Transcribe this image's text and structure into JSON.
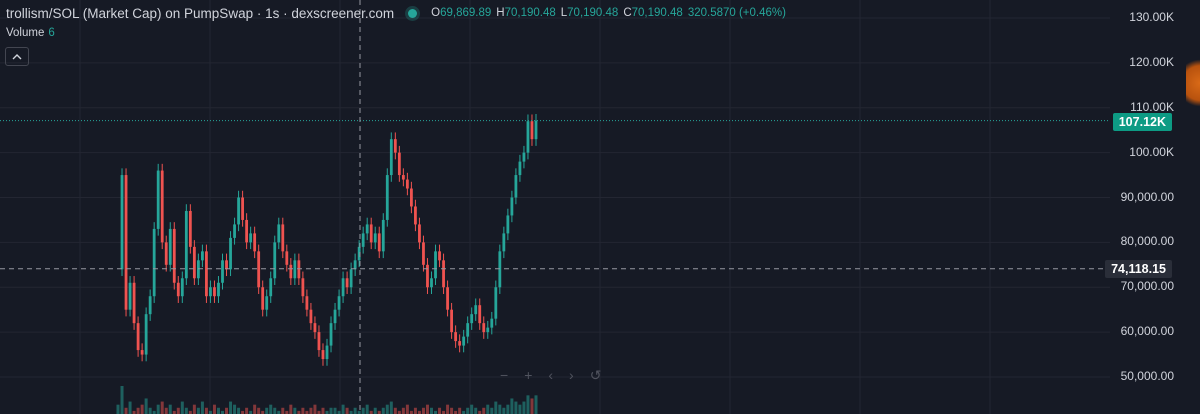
{
  "header": {
    "title": "trollism/SOL (Market Cap) on PumpSwap · 1s · dexscreener.com",
    "ohlc": {
      "o_label": "O",
      "o_value": "69,869.89",
      "h_label": "H",
      "h_value": "70,190.48",
      "l_label": "L",
      "l_value": "70,190.48",
      "c_label": "C",
      "c_value": "70,190.48",
      "change": "320.5870 (+0.46%)"
    },
    "up_color": "#26a69a"
  },
  "volume": {
    "label": "Volume",
    "value": "6"
  },
  "collapse_icon": "chevron-up-icon",
  "price_axis": {
    "labels": [
      "130.00K",
      "120.00K",
      "110.00K",
      "100.00K",
      "90,000.00",
      "80,000.00",
      "70,000.00",
      "60,000.00",
      "50,000.00"
    ],
    "current_price": "107.12K",
    "crosshair_price": "74,118.15"
  },
  "navigation_icons": [
    "zoom-out-icon",
    "zoom-in-icon",
    "scroll-left-icon",
    "scroll-right-icon",
    "reset-icon"
  ],
  "chart_data": {
    "type": "line",
    "title": "trollism/SOL (Market Cap) on PumpSwap · 1s · dexscreener.com",
    "ylim": [
      46000,
      134000
    ],
    "y_ticks": [
      130000,
      120000,
      110000,
      100000,
      90000,
      80000,
      70000,
      60000,
      50000
    ],
    "current_price": 107120,
    "crosshair_price": 74118.15,
    "colors": {
      "up": "#26a69a",
      "down": "#ef5350",
      "background": "#161a25",
      "grid": "#232632"
    },
    "series": [
      {
        "x": [
          0,
          1,
          2,
          3,
          4,
          5,
          6,
          7,
          8,
          9,
          10,
          11,
          12,
          13,
          14,
          15,
          16,
          17,
          18,
          19,
          20,
          21,
          22,
          23,
          24,
          25,
          26,
          27,
          28,
          29,
          30,
          31,
          32,
          33,
          34,
          35,
          36,
          37,
          38,
          39,
          40,
          41,
          42,
          43,
          44,
          45,
          46,
          47,
          48,
          49,
          50,
          51,
          52,
          53,
          54,
          55,
          56,
          57,
          58,
          59,
          60,
          61,
          62,
          63,
          64,
          65,
          66,
          67,
          68,
          69,
          70,
          71,
          72,
          73,
          74,
          75,
          76,
          77,
          78,
          79,
          80,
          81,
          82,
          83,
          84,
          85,
          86,
          87,
          88,
          89,
          90,
          91,
          92,
          93,
          94,
          95,
          96,
          97,
          98,
          99,
          100,
          101,
          102,
          103,
          104
        ],
        "values": [
          74000,
          95000,
          65000,
          71000,
          62000,
          56000,
          55000,
          64000,
          68000,
          83000,
          96000,
          80000,
          75000,
          83000,
          71000,
          68000,
          72000,
          87000,
          79000,
          72000,
          76000,
          78000,
          68000,
          70000,
          68000,
          71000,
          76000,
          74000,
          81000,
          84000,
          90000,
          85000,
          80000,
          82000,
          78000,
          70000,
          65000,
          68000,
          72000,
          80000,
          84000,
          78000,
          75000,
          72000,
          76000,
          72000,
          68000,
          65000,
          62000,
          60000,
          56000,
          54000,
          57000,
          62000,
          65000,
          68000,
          72000,
          70000,
          74000,
          76000,
          79000,
          82000,
          84000,
          80000,
          82000,
          78000,
          85000,
          95000,
          103000,
          100000,
          95000,
          94000,
          92000,
          88000,
          84000,
          80000,
          75000,
          70000,
          72000,
          78000,
          76000,
          70000,
          65000,
          60000,
          58000,
          57000,
          59000,
          62000,
          64000,
          66000,
          62000,
          60000,
          61000,
          63000,
          70000,
          78000,
          82000,
          86000,
          90000,
          95000,
          98000,
          100000,
          107000,
          103000,
          107120
        ]
      }
    ],
    "volume_values": [
      3,
      9,
      2,
      4,
      1,
      2,
      3,
      5,
      2,
      1,
      3,
      4,
      2,
      3,
      1,
      2,
      4,
      2,
      1,
      3,
      2,
      4,
      2,
      1,
      3,
      2,
      1,
      2,
      4,
      3,
      2,
      1,
      2,
      1,
      3,
      2,
      1,
      2,
      3,
      2,
      1,
      2,
      1,
      3,
      2,
      1,
      2,
      1,
      2,
      3,
      1,
      2,
      1,
      2,
      2,
      1,
      3,
      2,
      1,
      2,
      1,
      2,
      3,
      1,
      2,
      1,
      2,
      3,
      4,
      2,
      1,
      2,
      3,
      1,
      2,
      1,
      2,
      3,
      2,
      1,
      2,
      1,
      3,
      2,
      1,
      2,
      1,
      2,
      3,
      2,
      1,
      2,
      3,
      2,
      4,
      3,
      2,
      3,
      5,
      4,
      3,
      4,
      6,
      5,
      6
    ]
  }
}
